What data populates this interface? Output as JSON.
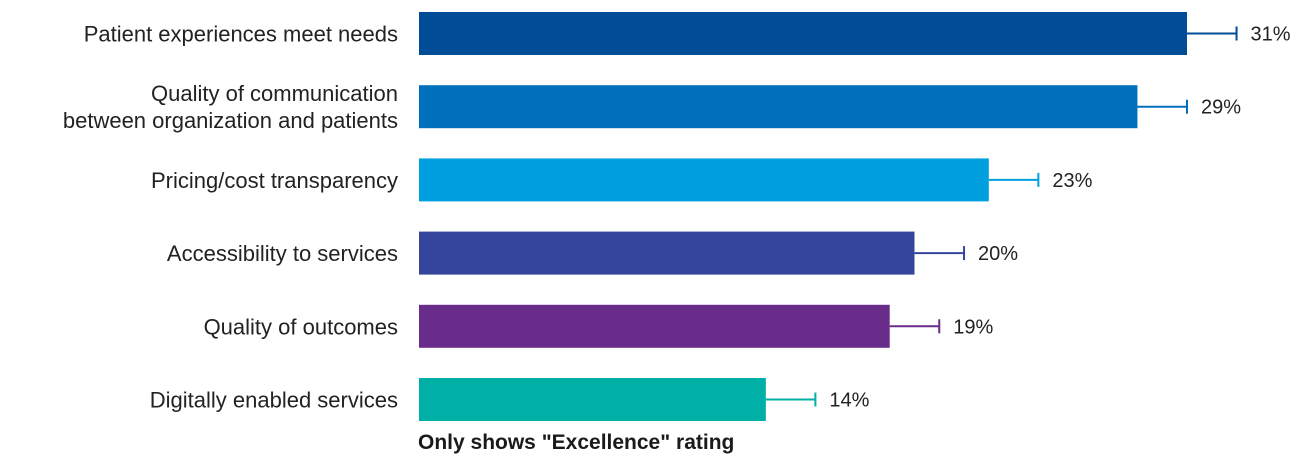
{
  "chart_data": {
    "type": "bar",
    "orientation": "horizontal",
    "categories": [
      "Patient experiences meet needs",
      "Quality of communication|between organization and patients",
      "Pricing/cost transparency",
      "Accessibility to services",
      "Quality of outcomes",
      "Digitally enabled services"
    ],
    "values": [
      31,
      29,
      23,
      20,
      19,
      14
    ],
    "value_labels": [
      "31%",
      "29%",
      "23%",
      "20%",
      "19%",
      "14%"
    ],
    "error_upper": [
      2,
      2,
      2,
      2,
      2,
      2
    ],
    "colors": [
      "#004C97",
      "#0070BD",
      "#00A0E0",
      "#36459C",
      "#6A2C8A",
      "#00B0A6"
    ],
    "xlim": [
      0,
      31
    ],
    "grid": false,
    "legend": "none",
    "footnote": "Only shows \"Excellence\" rating"
  }
}
